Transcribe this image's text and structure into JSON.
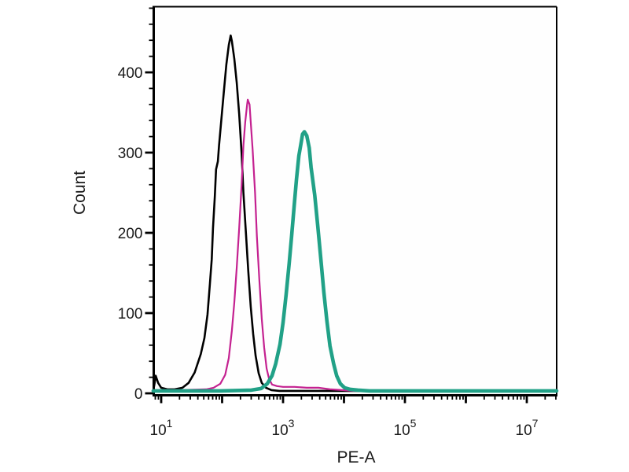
{
  "figure": {
    "background": "#ffffff",
    "plot_background": "#fefefe",
    "frame_color": "#000000"
  },
  "chart_data": {
    "type": "line",
    "subtype": "flow-cytometry-histogram",
    "title": "",
    "xlabel": "PE-A",
    "ylabel": "Count",
    "x_scale": "log10",
    "x_tick_base": "10",
    "x_labeled_decade_exponents": [
      "1",
      "3",
      "5",
      "7"
    ],
    "x_unlabeled_decade_exponents": [
      "2",
      "4",
      "6"
    ],
    "xlim_log10": [
      0.87,
      7.49
    ],
    "ylim": [
      0,
      482
    ],
    "y_major_ticks": [
      {
        "value": 0,
        "label": "0"
      },
      {
        "value": 100,
        "label": "100"
      },
      {
        "value": 200,
        "label": "200"
      },
      {
        "value": 300,
        "label": "300"
      },
      {
        "value": 400,
        "label": "400"
      }
    ],
    "y_minor_tick_step": 20,
    "grid": false,
    "legend": "none",
    "series": [
      {
        "name": "black-curve",
        "color": "#000000",
        "stroke_width": 2.6,
        "peak": {
          "x_log10": 2.14,
          "count": 446
        },
        "points": [
          [
            0.87,
            3
          ],
          [
            0.89,
            12
          ],
          [
            0.91,
            22
          ],
          [
            0.95,
            13
          ],
          [
            1.0,
            7
          ],
          [
            1.1,
            5
          ],
          [
            1.22,
            5
          ],
          [
            1.35,
            7
          ],
          [
            1.45,
            13
          ],
          [
            1.55,
            26
          ],
          [
            1.65,
            49
          ],
          [
            1.71,
            69
          ],
          [
            1.76,
            98
          ],
          [
            1.8,
            137
          ],
          [
            1.83,
            167
          ],
          [
            1.85,
            206
          ],
          [
            1.88,
            245
          ],
          [
            1.9,
            279
          ],
          [
            1.93,
            289
          ],
          [
            1.95,
            309
          ],
          [
            1.99,
            343
          ],
          [
            2.03,
            377
          ],
          [
            2.07,
            410
          ],
          [
            2.11,
            434
          ],
          [
            2.14,
            446
          ],
          [
            2.16,
            439
          ],
          [
            2.2,
            417
          ],
          [
            2.24,
            387
          ],
          [
            2.28,
            348
          ],
          [
            2.32,
            299
          ],
          [
            2.35,
            250
          ],
          [
            2.39,
            201
          ],
          [
            2.43,
            152
          ],
          [
            2.47,
            108
          ],
          [
            2.51,
            74
          ],
          [
            2.55,
            47
          ],
          [
            2.6,
            25
          ],
          [
            2.65,
            13
          ],
          [
            2.72,
            7
          ],
          [
            2.81,
            4
          ],
          [
            2.94,
            3
          ],
          [
            7.49,
            3
          ]
        ]
      },
      {
        "name": "magenta-curve",
        "color": "#c42190",
        "stroke_width": 2.2,
        "peak": {
          "x_log10": 2.42,
          "count": 366
        },
        "points": [
          [
            0.87,
            4
          ],
          [
            1.32,
            4
          ],
          [
            1.74,
            5
          ],
          [
            1.86,
            7
          ],
          [
            1.97,
            12
          ],
          [
            2.05,
            23
          ],
          [
            2.11,
            44
          ],
          [
            2.16,
            78
          ],
          [
            2.2,
            113
          ],
          [
            2.24,
            157
          ],
          [
            2.28,
            206
          ],
          [
            2.32,
            260
          ],
          [
            2.35,
            309
          ],
          [
            2.38,
            338
          ],
          [
            2.41,
            360
          ],
          [
            2.42,
            366
          ],
          [
            2.45,
            360
          ],
          [
            2.47,
            338
          ],
          [
            2.5,
            304
          ],
          [
            2.54,
            250
          ],
          [
            2.57,
            196
          ],
          [
            2.61,
            142
          ],
          [
            2.65,
            93
          ],
          [
            2.69,
            57
          ],
          [
            2.73,
            31
          ],
          [
            2.77,
            18
          ],
          [
            2.82,
            11
          ],
          [
            2.9,
            9
          ],
          [
            3.0,
            8
          ],
          [
            3.19,
            8
          ],
          [
            3.39,
            7
          ],
          [
            3.58,
            7
          ],
          [
            3.77,
            5
          ],
          [
            3.97,
            4
          ],
          [
            4.16,
            3
          ],
          [
            7.49,
            3
          ]
        ]
      },
      {
        "name": "teal-curve",
        "color": "#21a187",
        "stroke_width": 4.6,
        "peak": {
          "x_log10": 3.35,
          "count": 326
        },
        "points": [
          [
            0.87,
            3
          ],
          [
            1.97,
            3
          ],
          [
            2.48,
            4
          ],
          [
            2.64,
            6
          ],
          [
            2.74,
            12
          ],
          [
            2.82,
            22
          ],
          [
            2.88,
            37
          ],
          [
            2.95,
            61
          ],
          [
            3.0,
            88
          ],
          [
            3.05,
            123
          ],
          [
            3.1,
            162
          ],
          [
            3.14,
            196
          ],
          [
            3.18,
            232
          ],
          [
            3.22,
            267
          ],
          [
            3.26,
            296
          ],
          [
            3.3,
            314
          ],
          [
            3.32,
            323
          ],
          [
            3.35,
            326
          ],
          [
            3.39,
            321
          ],
          [
            3.43,
            306
          ],
          [
            3.46,
            282
          ],
          [
            3.52,
            247
          ],
          [
            3.57,
            208
          ],
          [
            3.62,
            167
          ],
          [
            3.67,
            126
          ],
          [
            3.72,
            90
          ],
          [
            3.77,
            59
          ],
          [
            3.83,
            37
          ],
          [
            3.88,
            22
          ],
          [
            3.94,
            12
          ],
          [
            4.01,
            7
          ],
          [
            4.1,
            5
          ],
          [
            4.23,
            4
          ],
          [
            4.42,
            3
          ],
          [
            7.49,
            3
          ]
        ]
      }
    ]
  }
}
